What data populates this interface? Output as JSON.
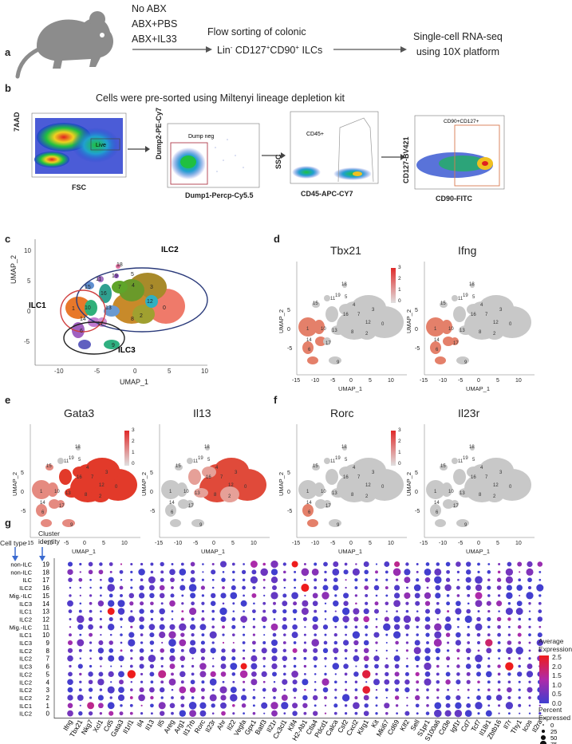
{
  "panels": {
    "a": {
      "label": "a",
      "conditions": [
        "No ABX",
        "ABX+PBS",
        "ABX+IL33"
      ],
      "step2_line1": "Flow sorting of colonic",
      "step2_line2_pre": "Lin",
      "step2_line2_sup1": "-",
      "step2_line2_mid1": " CD127",
      "step2_line2_sup2": "+",
      "step2_line2_mid2": "CD90",
      "step2_line2_sup3": "+",
      "step2_line2_post": " ILCs",
      "step3_line1": "Single-cell RNA-seq",
      "step3_line2": "using 10X platform"
    },
    "b": {
      "label": "b",
      "title": "Cells were pre-sorted using Miltenyi lineage depletion kit",
      "plots": [
        {
          "ylabel": "7AAD",
          "xlabel": "FSC",
          "gate": "Live"
        },
        {
          "ylabel": "Dump2-PE-Cy7",
          "xlabel": "Dump1-Percp-Cy5.5",
          "gate": "Dump neg"
        },
        {
          "ylabel": "SSC",
          "xlabel": "CD45-APC-CY7",
          "gate": "CD45+"
        },
        {
          "ylabel": "CD127-BV421",
          "xlabel": "CD90-FITC",
          "gate": "CD90+CD127+"
        }
      ]
    },
    "c": {
      "label": "c",
      "xlabel": "UMAP_1",
      "ylabel": "UMAP_2",
      "groups": [
        "ILC1",
        "ILC2",
        "ILC3"
      ],
      "xticks": [
        "-10",
        "-5",
        "0",
        "5",
        "10"
      ],
      "yticks": [
        "10",
        "5",
        "0",
        "-5"
      ]
    },
    "d": {
      "label": "d",
      "genes": [
        "Tbx21",
        "Ifng"
      ]
    },
    "e": {
      "label": "e",
      "genes": [
        "Gata3",
        "Il13"
      ]
    },
    "f": {
      "label": "f",
      "genes": [
        "Rorc",
        "Il23r"
      ]
    },
    "feature_axes": {
      "xlabel": "UMAP_1",
      "ylabel": "UMAP_2",
      "xticks": [
        "-15",
        "-10",
        "-5",
        "0",
        "5",
        "10"
      ],
      "yticks": [
        "5",
        "0",
        "-5"
      ],
      "scale": [
        "3",
        "2",
        "1",
        "0"
      ]
    },
    "g": {
      "label": "g",
      "head_celltype": "Cell type",
      "head_cluster_1": "Cluster",
      "head_cluster_2": "identity",
      "legend_avg_1": "Average",
      "legend_avg_2": "Expression",
      "legend_avg_ticks": [
        "2.5",
        "2.0",
        "1.5",
        "1.0",
        "0.5",
        "0.0"
      ],
      "legend_pct_1": "Percent",
      "legend_pct_2": "Expressed",
      "legend_pct_ticks": [
        "0",
        "25",
        "50",
        "75"
      ]
    }
  },
  "chart_data": {
    "type": "dot",
    "rows": [
      {
        "celltype": "non-ILC",
        "cluster": "19"
      },
      {
        "celltype": "non-ILC",
        "cluster": "18"
      },
      {
        "celltype": "ILC",
        "cluster": "17"
      },
      {
        "celltype": "ILC2",
        "cluster": "16"
      },
      {
        "celltype": "Mig.-ILC",
        "cluster": "15"
      },
      {
        "celltype": "ILC3",
        "cluster": "14"
      },
      {
        "celltype": "ILC1",
        "cluster": "13"
      },
      {
        "celltype": "ILC2",
        "cluster": "12"
      },
      {
        "celltype": "Mig.-ILC",
        "cluster": "11"
      },
      {
        "celltype": "ILC1",
        "cluster": "10"
      },
      {
        "celltype": "ILC3",
        "cluster": "9"
      },
      {
        "celltype": "ILC2",
        "cluster": "8"
      },
      {
        "celltype": "ILC2",
        "cluster": "7"
      },
      {
        "celltype": "ILC3",
        "cluster": "6"
      },
      {
        "celltype": "ILC2",
        "cluster": "5"
      },
      {
        "celltype": "ILC2",
        "cluster": "4"
      },
      {
        "celltype": "ILC2",
        "cluster": "3"
      },
      {
        "celltype": "ILC2",
        "cluster": "2"
      },
      {
        "celltype": "ILC1",
        "cluster": "1"
      },
      {
        "celltype": "ILC2",
        "cluster": "0"
      }
    ],
    "genes": [
      "Ifng",
      "Tbx21",
      "Nkg7",
      "Xcl1",
      "Cd5",
      "Gata3",
      "Il1rl1",
      "Il4",
      "Il13",
      "Il5",
      "Areg",
      "Arg1",
      "Il17rb",
      "Rorc",
      "Il23r",
      "Ahr",
      "Il22",
      "Vegfa",
      "Gpx1",
      "Batf3",
      "Il21r",
      "Cx3cl1",
      "Klf4",
      "H2-Ab1",
      "Ctla4",
      "Pdcd1",
      "Calca",
      "Csf2",
      "Cxcl2",
      "Klrg1",
      "Kit",
      "Mki67",
      "Cd69",
      "Klf2",
      "Sell",
      "S1pr1",
      "S100a6",
      "Cd3e",
      "Igf1r",
      "Cd7",
      "Tcf7",
      "Il18r1",
      "Zbtb16",
      "Il7r",
      "Thy1",
      "Icos",
      "Il2ra"
    ],
    "color_scale": {
      "min": 0.0,
      "max": 2.5,
      "low": "#3f3fd0",
      "high": "#ee1c1c"
    },
    "size_scale": {
      "min": 0,
      "max": 75
    },
    "highlights": [
      {
        "row": 0,
        "gene": "Gpx1",
        "pct": 55,
        "avg": 1.2
      },
      {
        "row": 0,
        "gene": "Klf4",
        "pct": 45,
        "avg": 2.5
      },
      {
        "row": 0,
        "gene": "Cd69",
        "pct": 35,
        "avg": 1.5
      },
      {
        "row": 1,
        "gene": "H2-Ab1",
        "pct": 65,
        "avg": 0.8
      },
      {
        "row": 1,
        "gene": "Cd69",
        "pct": 65,
        "avg": 1.0
      },
      {
        "row": 1,
        "gene": "S100a6",
        "pct": 55,
        "avg": 0.4
      },
      {
        "row": 1,
        "gene": "Il7r",
        "pct": 60,
        "avg": 0.6
      },
      {
        "row": 3,
        "gene": "H2-Ab1",
        "pct": 70,
        "avg": 2.5
      },
      {
        "row": 6,
        "gene": "Cd5",
        "pct": 55,
        "avg": 2.5
      },
      {
        "row": 10,
        "gene": "S100a6",
        "pct": 70,
        "avg": 1.0
      },
      {
        "row": 10,
        "gene": "Il18r1",
        "pct": 60,
        "avg": 1.8
      },
      {
        "row": 13,
        "gene": "Il22",
        "pct": 55,
        "avg": 0.0
      },
      {
        "row": 13,
        "gene": "Vegfa",
        "pct": 45,
        "avg": 2.5
      },
      {
        "row": 13,
        "gene": "Il7r",
        "pct": 75,
        "avg": 2.5
      },
      {
        "row": 14,
        "gene": "Il1rl1",
        "pct": 75,
        "avg": 2.5
      },
      {
        "row": 14,
        "gene": "Il5",
        "pct": 70,
        "avg": 1.5
      },
      {
        "row": 14,
        "gene": "Klrg1",
        "pct": 75,
        "avg": 2.2
      },
      {
        "row": 16,
        "gene": "Klrg1",
        "pct": 65,
        "avg": 2.3
      },
      {
        "row": 18,
        "gene": "Ifng",
        "pct": 30,
        "avg": 1.0
      },
      {
        "row": 18,
        "gene": "Nkg7",
        "pct": 55,
        "avg": 1.5
      }
    ]
  }
}
